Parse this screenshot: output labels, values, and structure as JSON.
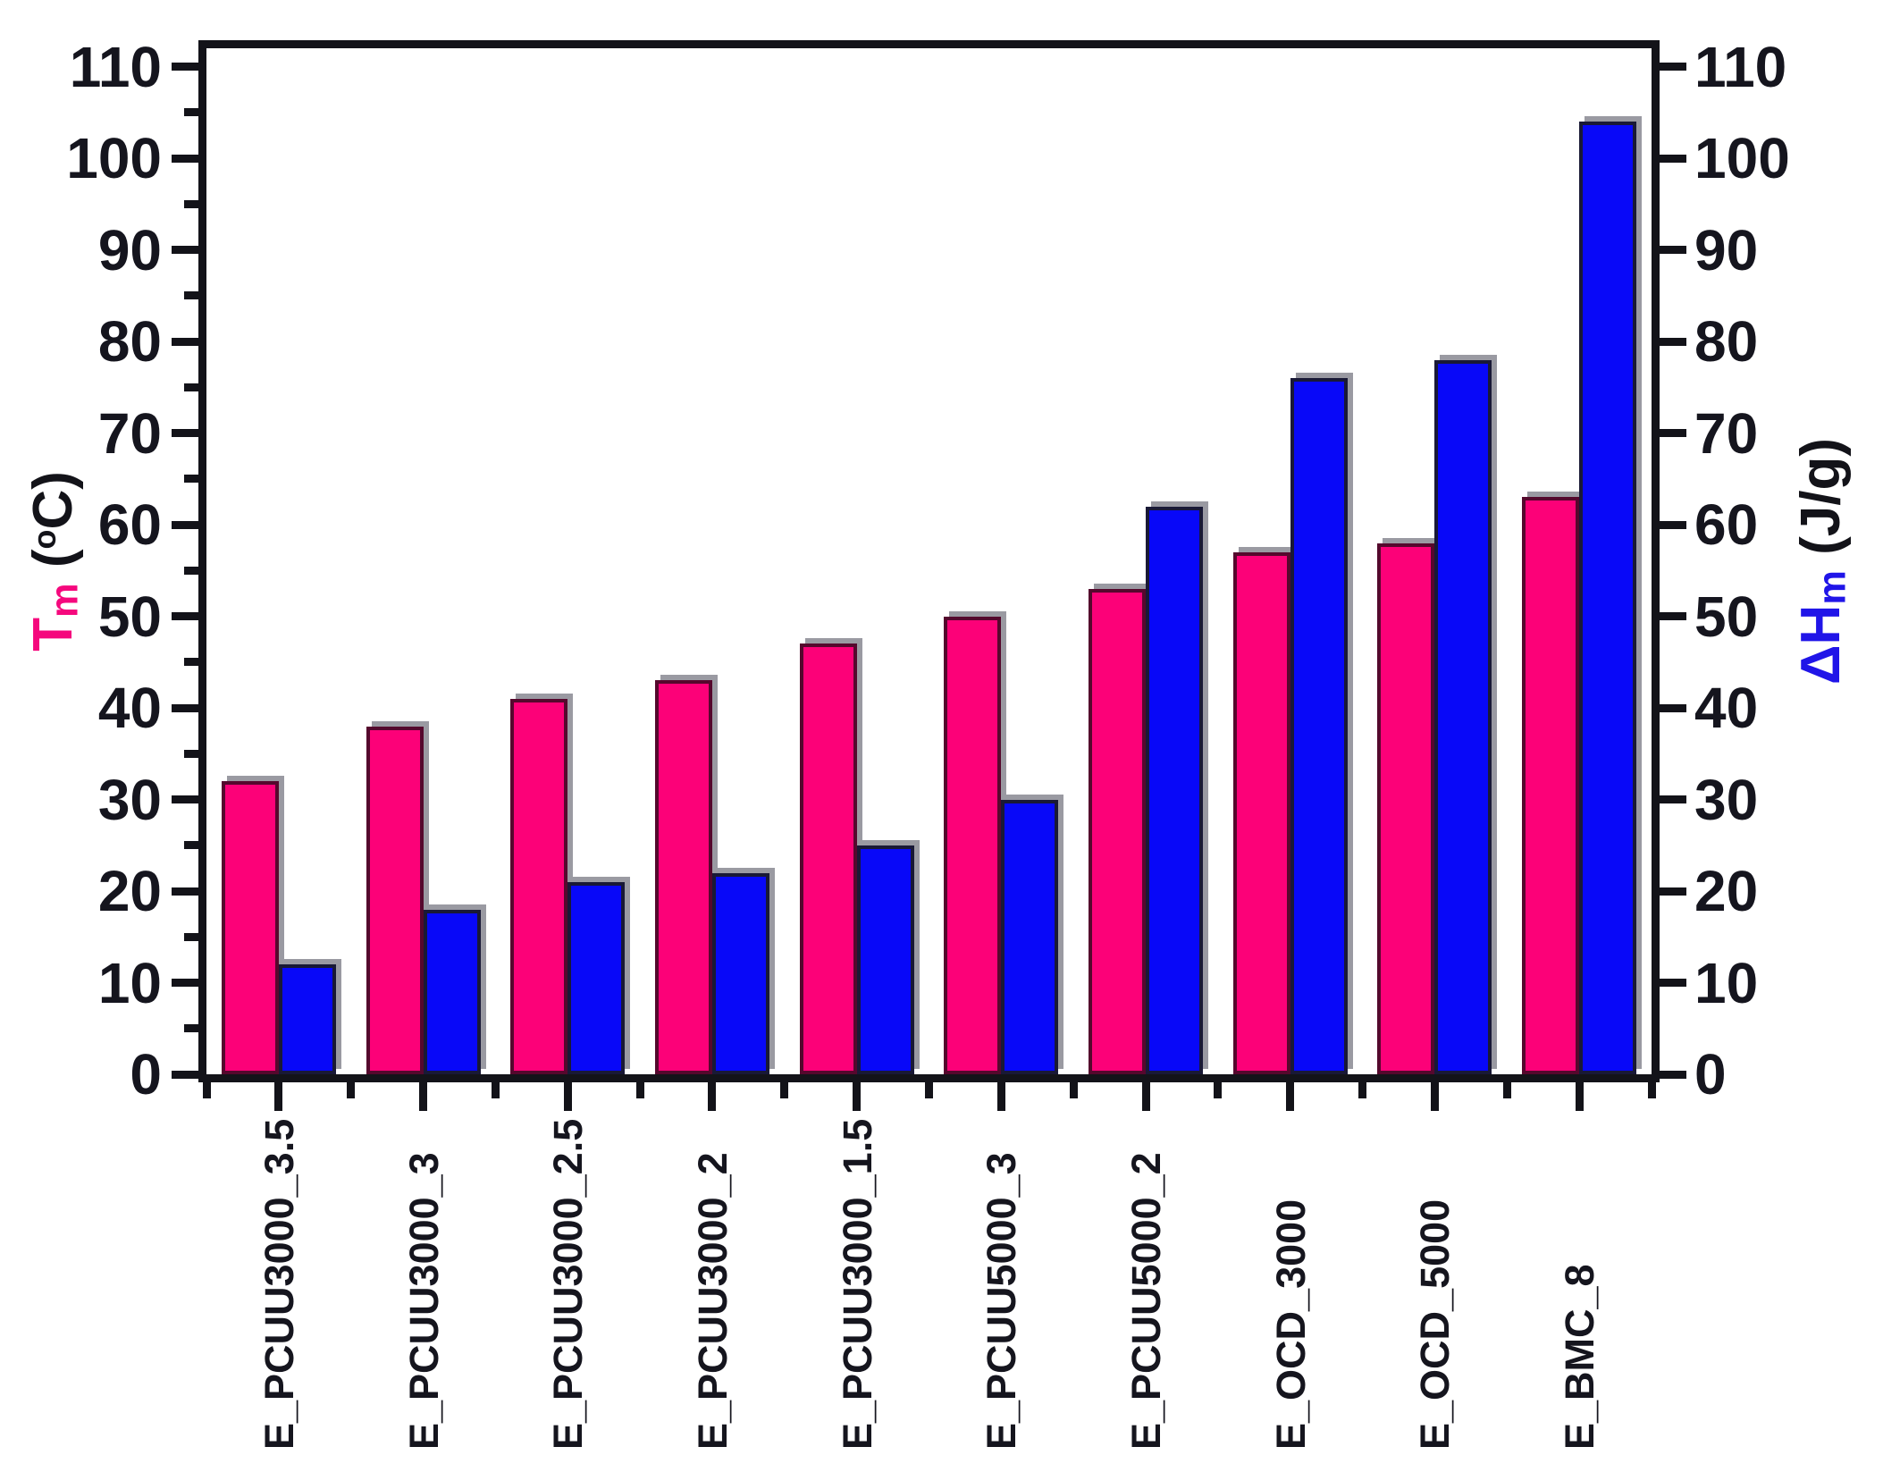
{
  "chart_data": {
    "type": "bar",
    "title": "",
    "grid": false,
    "legend_position": "none",
    "background_color": "#FFFFFF",
    "axis_color": "#131319",
    "shadow_color": "#9A9AA2",
    "categories": [
      "E_PCUU3000_3.5",
      "E_PCUU3000_3",
      "E_PCUU3000_2.5",
      "E_PCUU3000_2",
      "E_PCUU3000_1.5",
      "E_PCUU5000_3",
      "E_PCUU5000_2",
      "E_OCD_3000",
      "E_OCD_5000",
      "E_BMC_8"
    ],
    "series": [
      {
        "name": "Tm",
        "axis": "left",
        "color": "#FC0178",
        "edge_color": "#55082D",
        "values": [
          32,
          38,
          41,
          43,
          47,
          50,
          53,
          57,
          58,
          63
        ]
      },
      {
        "name": "ΔHm",
        "axis": "right",
        "color": "#0808F8",
        "edge_color": "#191936",
        "values": [
          12,
          18,
          21,
          22,
          25,
          30,
          62,
          76,
          78,
          104
        ]
      }
    ],
    "left_axis": {
      "title_main": "T",
      "title_sub": "m",
      "title_unit_open": " (",
      "title_unit_deg": "o",
      "title_unit_close": "C)",
      "title_color": "#F5087D",
      "ticks": [
        0,
        10,
        20,
        30,
        40,
        50,
        60,
        70,
        80,
        90,
        100,
        110
      ],
      "minor_ticks": [
        5,
        15,
        25,
        35,
        45,
        55,
        65,
        75,
        85,
        95,
        105
      ],
      "range": [
        0,
        112
      ]
    },
    "right_axis": {
      "title_delta": "Δ",
      "title_main": "H",
      "title_sub": "m",
      "title_unit": " (J/g)",
      "title_color": "#2015E8",
      "ticks": [
        0,
        10,
        20,
        30,
        40,
        50,
        60,
        70,
        80,
        90,
        100,
        110
      ],
      "range": [
        0,
        112
      ]
    },
    "x_axis": {
      "tick_label_rotation": -90
    }
  }
}
